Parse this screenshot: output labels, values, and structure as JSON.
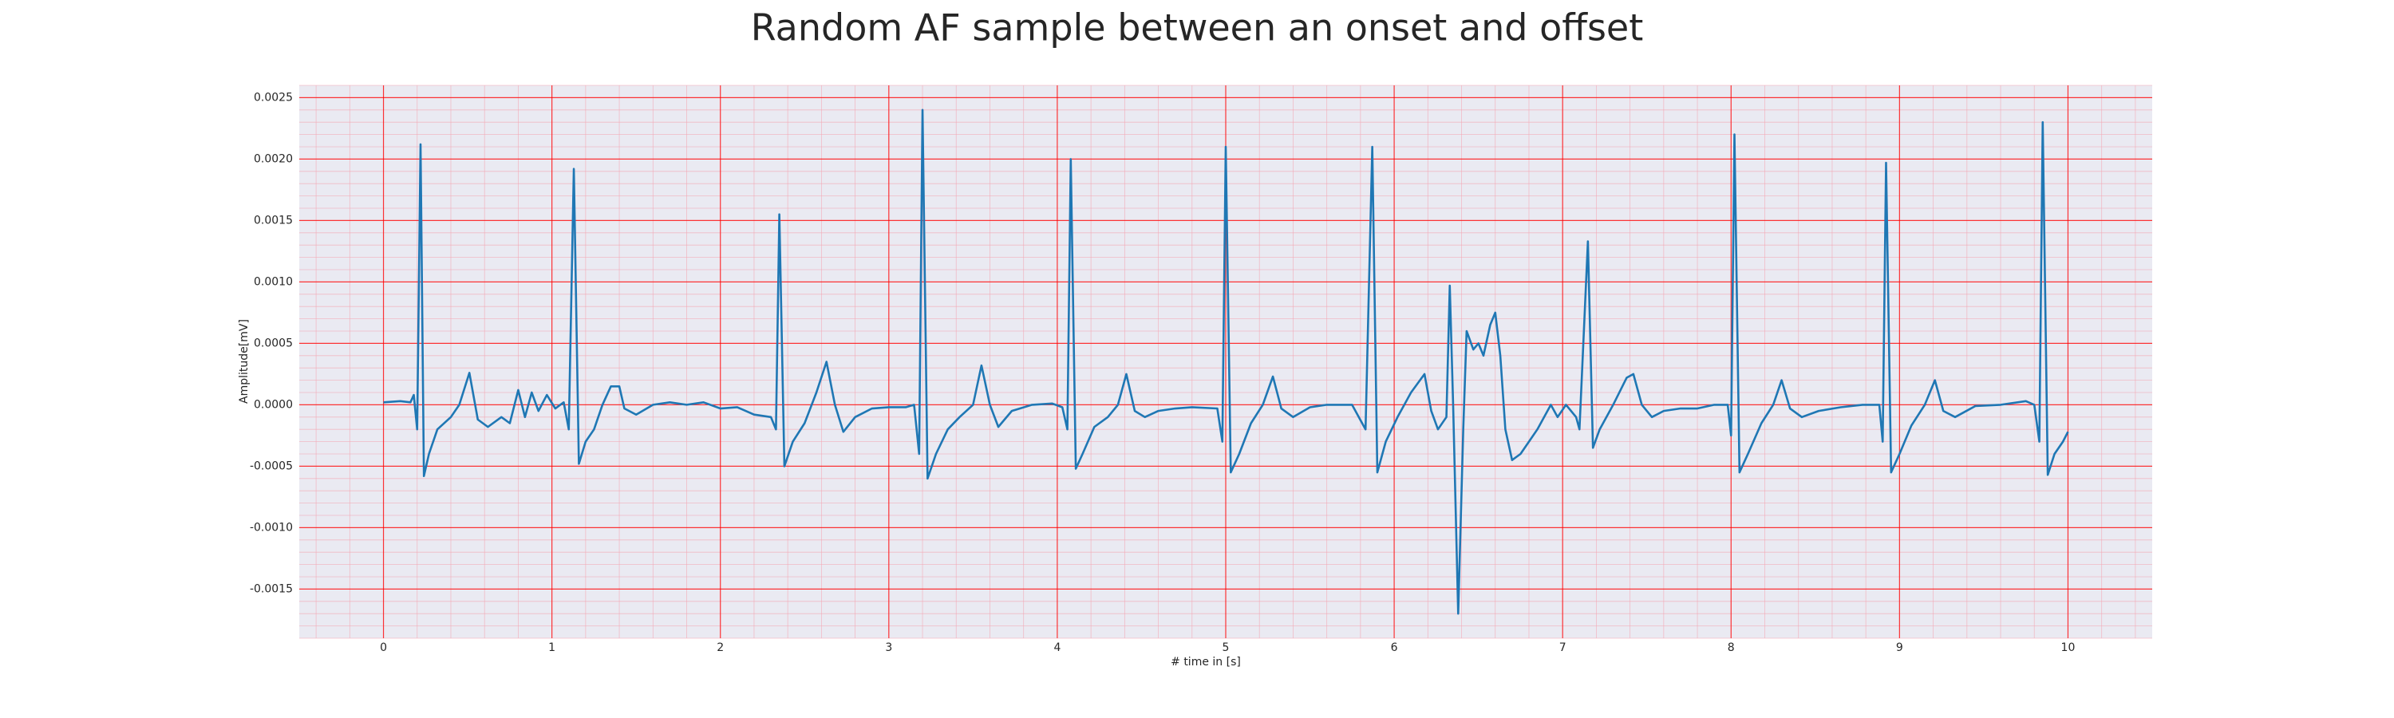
{
  "chart_data": {
    "type": "line",
    "title": "Random AF sample between an onset and offset",
    "xlabel": "# time in [s]",
    "ylabel": "Amplitude[mV]",
    "color": "#1f77b4",
    "grid": true,
    "minor_grid_step": {
      "x": 0.2,
      "y": 0.0001
    },
    "xlim": [
      -0.5,
      10.5
    ],
    "ylim": [
      -0.0019,
      0.0026
    ],
    "xticks": [
      0,
      1,
      2,
      3,
      4,
      5,
      6,
      7,
      8,
      9,
      10
    ],
    "yticks": [
      -0.0015,
      {
        "value": -0.001,
        "label": "-0.0010"
      },
      -0.0005,
      {
        "value": 0,
        "label": "0.0000"
      },
      0.0005,
      {
        "value": 0.001,
        "label": "0.0010"
      },
      0.0015,
      {
        "value": 0.002,
        "label": "0.0020"
      },
      0.0025
    ],
    "x": [
      0.0,
      0.1,
      0.16,
      0.18,
      0.2,
      0.22,
      0.24,
      0.27,
      0.32,
      0.4,
      0.45,
      0.51,
      0.56,
      0.62,
      0.7,
      0.75,
      0.8,
      0.84,
      0.88,
      0.92,
      0.97,
      1.02,
      1.07,
      1.1,
      1.13,
      1.16,
      1.2,
      1.25,
      1.3,
      1.35,
      1.4,
      1.43,
      1.5,
      1.6,
      1.7,
      1.8,
      1.9,
      2.0,
      2.1,
      2.2,
      2.3,
      2.33,
      2.35,
      2.38,
      2.43,
      2.5,
      2.57,
      2.63,
      2.68,
      2.73,
      2.8,
      2.9,
      3.0,
      3.1,
      3.15,
      3.18,
      3.2,
      3.23,
      3.28,
      3.35,
      3.42,
      3.5,
      3.55,
      3.6,
      3.65,
      3.73,
      3.85,
      3.97,
      4.03,
      4.06,
      4.08,
      4.11,
      4.15,
      4.22,
      4.3,
      4.36,
      4.41,
      4.46,
      4.52,
      4.6,
      4.7,
      4.8,
      4.95,
      4.98,
      5.0,
      5.03,
      5.08,
      5.15,
      5.22,
      5.28,
      5.33,
      5.4,
      5.5,
      5.6,
      5.75,
      5.83,
      5.87,
      5.9,
      5.95,
      6.02,
      6.1,
      6.18,
      6.22,
      6.26,
      6.31,
      6.33,
      6.35,
      6.38,
      6.41,
      6.43,
      6.47,
      6.5,
      6.53,
      6.57,
      6.6,
      6.63,
      6.66,
      6.7,
      6.75,
      6.8,
      6.85,
      6.93,
      6.97,
      7.02,
      7.08,
      7.1,
      7.15,
      7.18,
      7.22,
      7.3,
      7.38,
      7.42,
      7.47,
      7.53,
      7.6,
      7.7,
      7.8,
      7.9,
      7.98,
      8.0,
      8.02,
      8.05,
      8.1,
      8.18,
      8.25,
      8.3,
      8.35,
      8.42,
      8.52,
      8.65,
      8.78,
      8.88,
      8.9,
      8.92,
      8.95,
      9.0,
      9.07,
      9.15,
      9.21,
      9.26,
      9.33,
      9.45,
      9.6,
      9.75,
      9.8,
      9.83,
      9.85,
      9.88,
      9.92,
      9.97,
      10.0
    ],
    "values": [
      2e-05,
      3e-05,
      2e-05,
      8e-05,
      -0.0002,
      0.00212,
      -0.00058,
      -0.0004,
      -0.0002,
      -0.0001,
      0.0,
      0.00026,
      -0.00012,
      -0.00018,
      -0.0001,
      -0.00015,
      0.00012,
      -0.0001,
      0.0001,
      -5e-05,
      8e-05,
      -3e-05,
      2e-05,
      -0.0002,
      0.00192,
      -0.00048,
      -0.0003,
      -0.0002,
      0.0,
      0.00015,
      0.00015,
      -3e-05,
      -8e-05,
      0.0,
      2e-05,
      0.0,
      2e-05,
      -3e-05,
      -2e-05,
      -8e-05,
      -0.0001,
      -0.0002,
      0.00155,
      -0.0005,
      -0.0003,
      -0.00015,
      0.0001,
      0.00035,
      0.0,
      -0.00022,
      -0.0001,
      -3e-05,
      -2e-05,
      -2e-05,
      0.0,
      -0.0004,
      0.0024,
      -0.0006,
      -0.0004,
      -0.0002,
      -0.0001,
      0.0,
      0.00032,
      0.0,
      -0.00018,
      -5e-05,
      0.0,
      1e-05,
      -2e-05,
      -0.0002,
      0.002,
      -0.00052,
      -0.0004,
      -0.00018,
      -0.0001,
      0.0,
      0.00025,
      -5e-05,
      -0.0001,
      -5e-05,
      -3e-05,
      -2e-05,
      -3e-05,
      -0.0003,
      0.0021,
      -0.00055,
      -0.0004,
      -0.00015,
      0.0,
      0.00023,
      -3e-05,
      -0.0001,
      -2e-05,
      0.0,
      0.0,
      -0.0002,
      0.0021,
      -0.00055,
      -0.0003,
      -0.0001,
      0.0001,
      0.00025,
      -5e-05,
      -0.0002,
      -0.0001,
      0.00097,
      0.0,
      -0.0017,
      -0.0002,
      0.0006,
      0.00045,
      0.0005,
      0.0004,
      0.00065,
      0.00075,
      0.0004,
      -0.0002,
      -0.00045,
      -0.0004,
      -0.0003,
      -0.0002,
      0.0,
      -0.0001,
      0.0,
      -0.0001,
      -0.0002,
      0.00133,
      -0.00035,
      -0.0002,
      0.0,
      0.00022,
      0.00025,
      0.0,
      -0.0001,
      -5e-05,
      -3e-05,
      -3e-05,
      0.0,
      0.0,
      -0.00025,
      0.0022,
      -0.00055,
      -0.0004,
      -0.00015,
      0.0,
      0.0002,
      -3e-05,
      -0.0001,
      -5e-05,
      -2e-05,
      0.0,
      0.0,
      -0.0003,
      0.00197,
      -0.00055,
      -0.0004,
      -0.00017,
      0.0,
      0.0002,
      -5e-05,
      -0.0001,
      -1e-05,
      0.0,
      3e-05,
      0.0,
      -0.0003,
      0.0023,
      -0.00057,
      -0.0004,
      -0.0003,
      -0.00022
    ]
  }
}
